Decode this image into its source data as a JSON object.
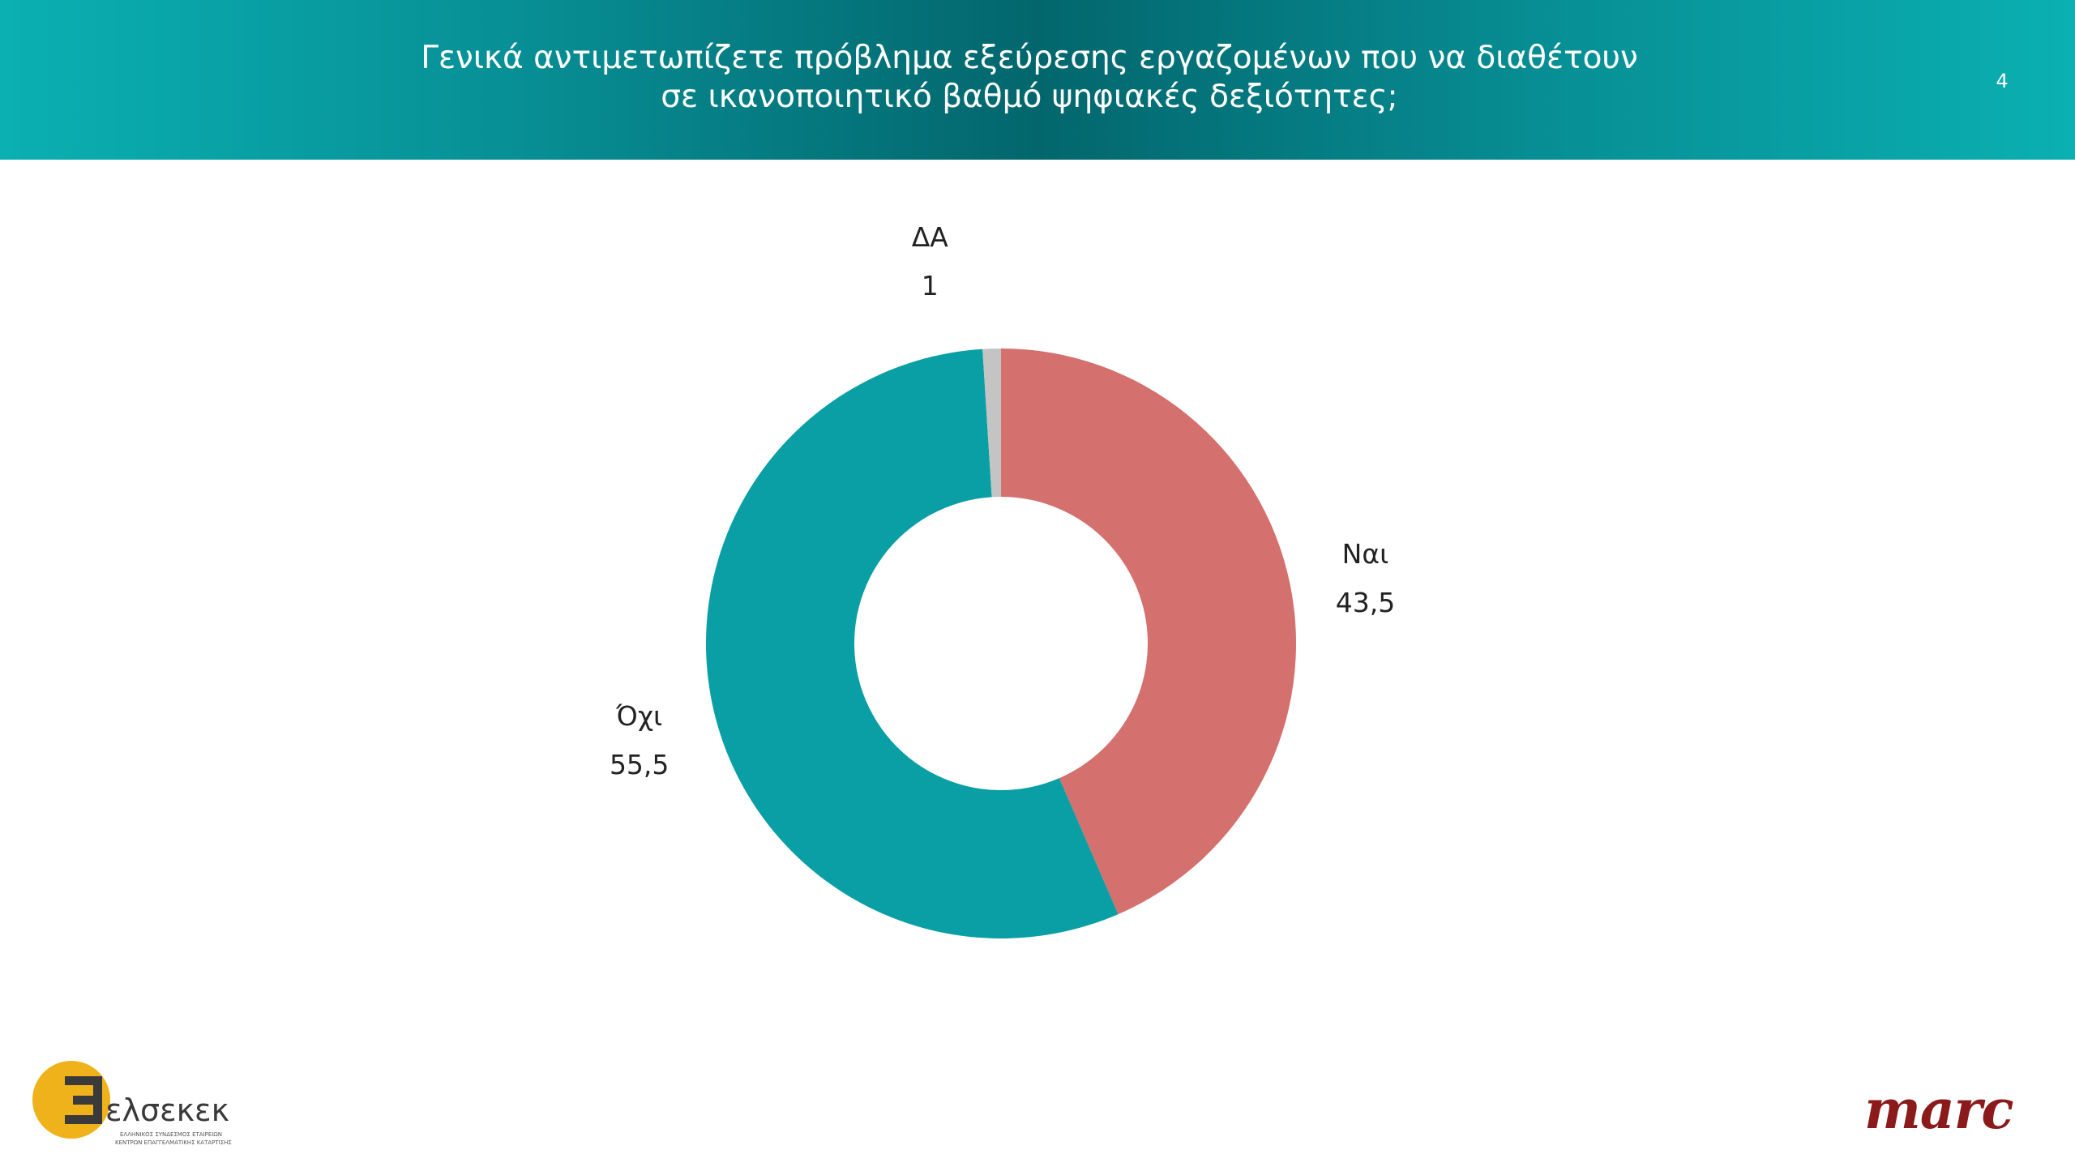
{
  "header": {
    "title_line1": "Γενικά  αντιμετωπίζετε πρόβλημα εξεύρεσης εργαζομένων που να διαθέτουν",
    "title_line2": "σε ικανοποιητικό βαθμό ψηφιακές δεξιότητες;",
    "page_number": "4"
  },
  "chart_data": {
    "type": "pie",
    "donut": true,
    "title": "",
    "categories": [
      "Ναι",
      "Όχι",
      "ΔΑ"
    ],
    "values": [
      43.5,
      55.5,
      1
    ],
    "value_labels": [
      "43,5",
      "55,5",
      "1"
    ],
    "colors": [
      "#d4706d",
      "#0a9fa5",
      "#c4c4c4"
    ],
    "legend": "none"
  },
  "logos": {
    "left_name": "ελσεκεκ",
    "left_subtitle_line1": "ΕΛΛΗΝΙΚΟΣ ΣΥΝΔΕΣΜΟΣ ΕΤΑΙΡΕΙΩΝ",
    "left_subtitle_line2": "ΚΕΝΤΡΩΝ ΕΠΑΓΓΕΛΜΑΤΙΚΗΣ ΚΑΤΑΡΤΙΣΗΣ",
    "right_name": "marc"
  }
}
